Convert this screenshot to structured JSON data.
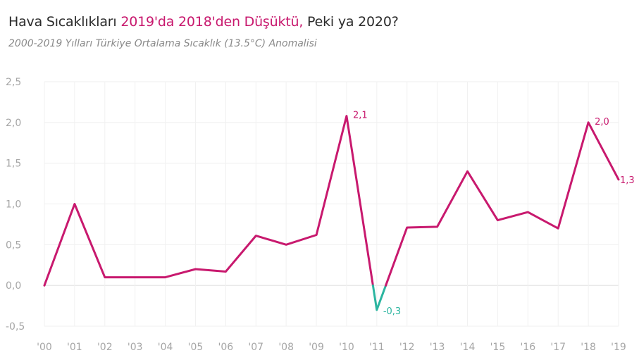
{
  "title": {
    "part1": "Hava Sıcaklıkları ",
    "highlight": "2019'da 2018'den Düşüktü,",
    "part2": " Peki ya 2020?",
    "highlight_color": "#c8196e"
  },
  "subtitle": "2000-2019 Yılları Türkiye Ortalama Sıcaklık (13.5°C) Anomalisi",
  "chart_data": {
    "type": "line",
    "title": "Hava Sıcaklıkları 2019'da 2018'den Düşüktü, Peki ya 2020?",
    "subtitle": "2000-2019 Yılları Türkiye Ortalama Sıcaklık (13.5°C) Anomalisi",
    "categories": [
      "'00",
      "'01",
      "'02",
      "'03",
      "'04",
      "'05",
      "'06",
      "'07",
      "'08",
      "'09",
      "'10",
      "'11",
      "'12",
      "'13",
      "'14",
      "'15",
      "'16",
      "'17",
      "'18",
      "'19"
    ],
    "x": [
      2000,
      2001,
      2002,
      2003,
      2004,
      2005,
      2006,
      2007,
      2008,
      2009,
      2010,
      2011,
      2012,
      2013,
      2014,
      2015,
      2016,
      2017,
      2018,
      2019
    ],
    "values": [
      0.0,
      1.0,
      0.1,
      0.1,
      0.1,
      0.2,
      0.17,
      0.61,
      0.5,
      0.62,
      2.08,
      -0.3,
      0.71,
      0.72,
      1.4,
      0.8,
      0.9,
      0.7,
      2.0,
      1.3
    ],
    "y_ticks": [
      -0.5,
      0.0,
      0.5,
      1.0,
      1.5,
      2.0,
      2.5
    ],
    "y_tick_labels": [
      "-0,5",
      "0,0",
      "0,5",
      "1,0",
      "1,5",
      "2,0",
      "2,5"
    ],
    "ylim": [
      -0.5,
      2.5
    ],
    "positive_color": "#c8196e",
    "negative_color": "#2bb5a0",
    "grid": true,
    "legend": "none",
    "annotations": [
      {
        "year": 2010,
        "value": 2.1,
        "text": "2,1",
        "color": "#c8196e"
      },
      {
        "year": 2011,
        "value": -0.3,
        "text": "-0,3",
        "color": "#2bb5a0"
      },
      {
        "year": 2018,
        "value": 2.0,
        "text": "2,0",
        "color": "#c8196e"
      },
      {
        "year": 2019,
        "value": 1.3,
        "text": "1,3",
        "color": "#c8196e"
      }
    ]
  }
}
